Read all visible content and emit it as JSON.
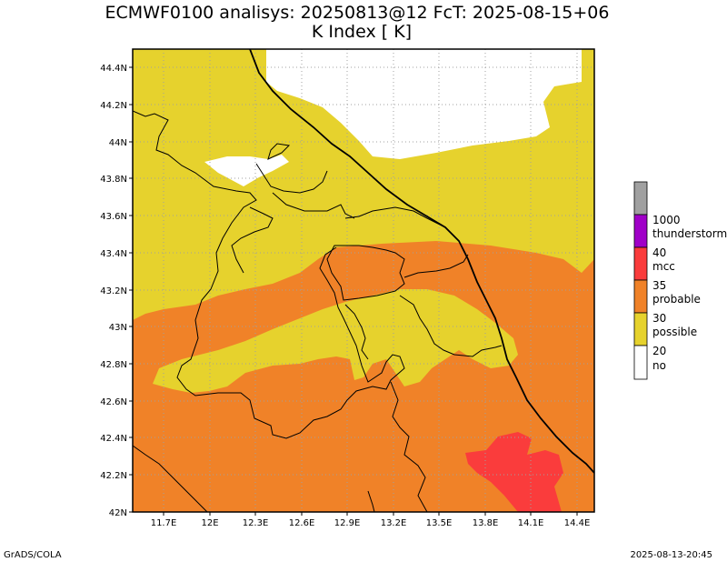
{
  "title_line1": "ECMWF0100 analisys: 20250813@12 FcT: 2025-08-15+06",
  "title_line2": "K Index [  K]",
  "footer_left": "GrADS/COLA",
  "footer_right": "2025-08-13-20:45",
  "axes": {
    "lon_range": [
      11.5,
      14.55
    ],
    "lat_range": [
      42.0,
      44.5
    ],
    "lon_ticks": [
      "11.7E",
      "12E",
      "12.3E",
      "12.6E",
      "12.9E",
      "13.2E",
      "13.5E",
      "13.8E",
      "14.1E",
      "14.4E"
    ],
    "lat_ticks": [
      "42N",
      "42.2N",
      "42.4N",
      "42.6N",
      "42.8N",
      "43N",
      "43.2N",
      "43.4N",
      "43.6N",
      "43.8N",
      "44N",
      "44.2N",
      "44.4N"
    ],
    "grid": true
  },
  "legend": {
    "colors": {
      "no": "#ffffff",
      "possible": "#e6d22d",
      "probable": "#f08228",
      "mcc": "#fa3c3c",
      "thunderstorm": "#a000c8",
      "top": "#a0a0a0"
    },
    "labels": [
      {
        "value": "1000",
        "name": "thunderstorm"
      },
      {
        "value": "40",
        "name": "mcc"
      },
      {
        "value": "35",
        "name": "probable"
      },
      {
        "value": "30",
        "name": "possible"
      },
      {
        "value": "20",
        "name": "no"
      }
    ]
  }
}
